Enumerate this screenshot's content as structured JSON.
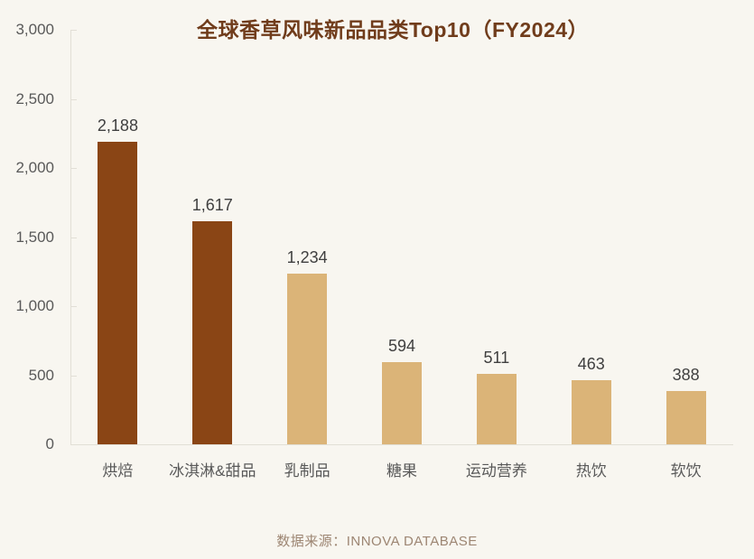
{
  "chart_data": {
    "type": "bar",
    "title": "全球香草风味新品品类Top10（FY2024）",
    "categories": [
      "烘焙",
      "冰淇淋&甜品",
      "乳制品",
      "糖果",
      "运动营养",
      "热饮",
      "软饮"
    ],
    "values": [
      2188,
      1617,
      1234,
      594,
      511,
      463,
      388
    ],
    "value_labels": [
      "2,188",
      "1,617",
      "1,234",
      "594",
      "511",
      "463",
      "388"
    ],
    "bar_colors": [
      "#8A4515",
      "#8A4515",
      "#DBB478",
      "#DBB478",
      "#DBB478",
      "#DBB478",
      "#DBB478"
    ],
    "ylim": [
      0,
      3000
    ],
    "ytick_interval": 500,
    "ytick_labels": [
      "0",
      "500",
      "1,000",
      "1,500",
      "2,000",
      "2,500",
      "3,000"
    ],
    "grid": false,
    "legend": false,
    "source_note": "数据来源：INNOVA DATABASE",
    "colors": {
      "background": "#F8F6F0",
      "title": "#703C1B",
      "axis_label": "#595959",
      "value_label": "#3F3F3F",
      "axis_line": "#E2DFD6",
      "source_text": "#9D8673",
      "bar_dark": "#8A4515",
      "bar_light": "#DBB478"
    }
  }
}
